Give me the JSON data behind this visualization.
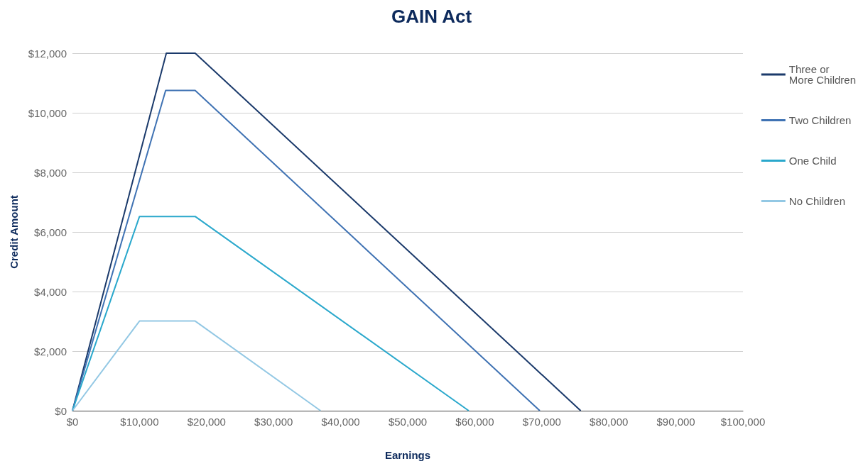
{
  "chart_data": {
    "type": "line",
    "title": "GAIN Act",
    "xlabel": "Earnings",
    "ylabel": "Credit Amount",
    "xlim": [
      0,
      100000
    ],
    "xticks": [
      {
        "value": 0,
        "label": "$0"
      },
      {
        "value": 10000,
        "label": "$10,000"
      },
      {
        "value": 20000,
        "label": "$20,000"
      },
      {
        "value": 30000,
        "label": "$30,000"
      },
      {
        "value": 40000,
        "label": "$40,000"
      },
      {
        "value": 50000,
        "label": "$50,000"
      },
      {
        "value": 60000,
        "label": "$60,000"
      },
      {
        "value": 70000,
        "label": "$70,000"
      },
      {
        "value": 80000,
        "label": "$80,000"
      },
      {
        "value": 90000,
        "label": "$90,000"
      },
      {
        "value": 100000,
        "label": "$100,000"
      }
    ],
    "ylim": [
      0,
      12000
    ],
    "yticks": [
      {
        "value": 0,
        "label": "$0"
      },
      {
        "value": 2000,
        "label": "$2,000"
      },
      {
        "value": 4000,
        "label": "$4,000"
      },
      {
        "value": 6000,
        "label": "$6,000"
      },
      {
        "value": 8000,
        "label": "$8,000"
      },
      {
        "value": 10000,
        "label": "$10,000"
      },
      {
        "value": 12000,
        "label": "$12,000"
      }
    ],
    "grid": "y",
    "legend": "right",
    "marker": "none",
    "line_style": "solid",
    "series": [
      {
        "name": "Three or\nMore Children",
        "color": "#1b3a6b",
        "x": [
          0,
          14000,
          18300,
          75800
        ],
        "values": [
          0,
          12000,
          12000,
          0
        ]
      },
      {
        "name": "Two Children",
        "color": "#3f72b3",
        "x": [
          0,
          13900,
          18300,
          69700
        ],
        "values": [
          0,
          10750,
          10750,
          0
        ]
      },
      {
        "name": "One Child",
        "color": "#2aa8cc",
        "x": [
          0,
          10000,
          18300,
          59100
        ],
        "values": [
          0,
          6520,
          6520,
          0
        ]
      },
      {
        "name": "No Children",
        "color": "#93c8e4",
        "x": [
          0,
          10000,
          18300,
          37000
        ],
        "values": [
          0,
          3010,
          3010,
          0
        ]
      }
    ]
  }
}
